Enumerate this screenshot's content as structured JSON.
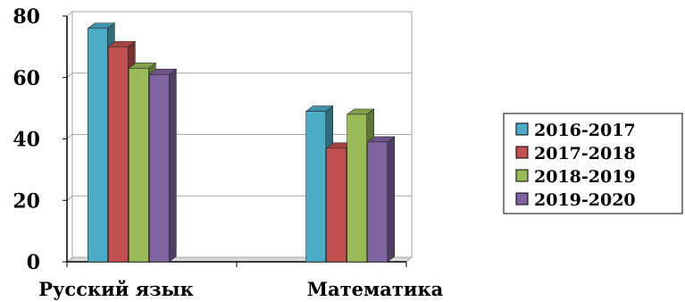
{
  "chart_data": {
    "type": "bar",
    "categories": [
      "Русский язык",
      "Математика"
    ],
    "series": [
      {
        "name": "2016-2017",
        "values": [
          76,
          49
        ],
        "color": "#4bacc6"
      },
      {
        "name": "2017-2018",
        "values": [
          70,
          37
        ],
        "color": "#c0504d"
      },
      {
        "name": "2018-2019",
        "values": [
          63,
          48
        ],
        "color": "#9bbb59"
      },
      {
        "name": "2019-2020",
        "values": [
          61,
          39
        ],
        "color": "#8064a2"
      }
    ],
    "ylim": [
      0,
      80
    ],
    "yticks": [
      "0",
      "20",
      "40",
      "60",
      "80"
    ],
    "grid": true,
    "legend_position": "right",
    "style": "3d-clustered"
  }
}
